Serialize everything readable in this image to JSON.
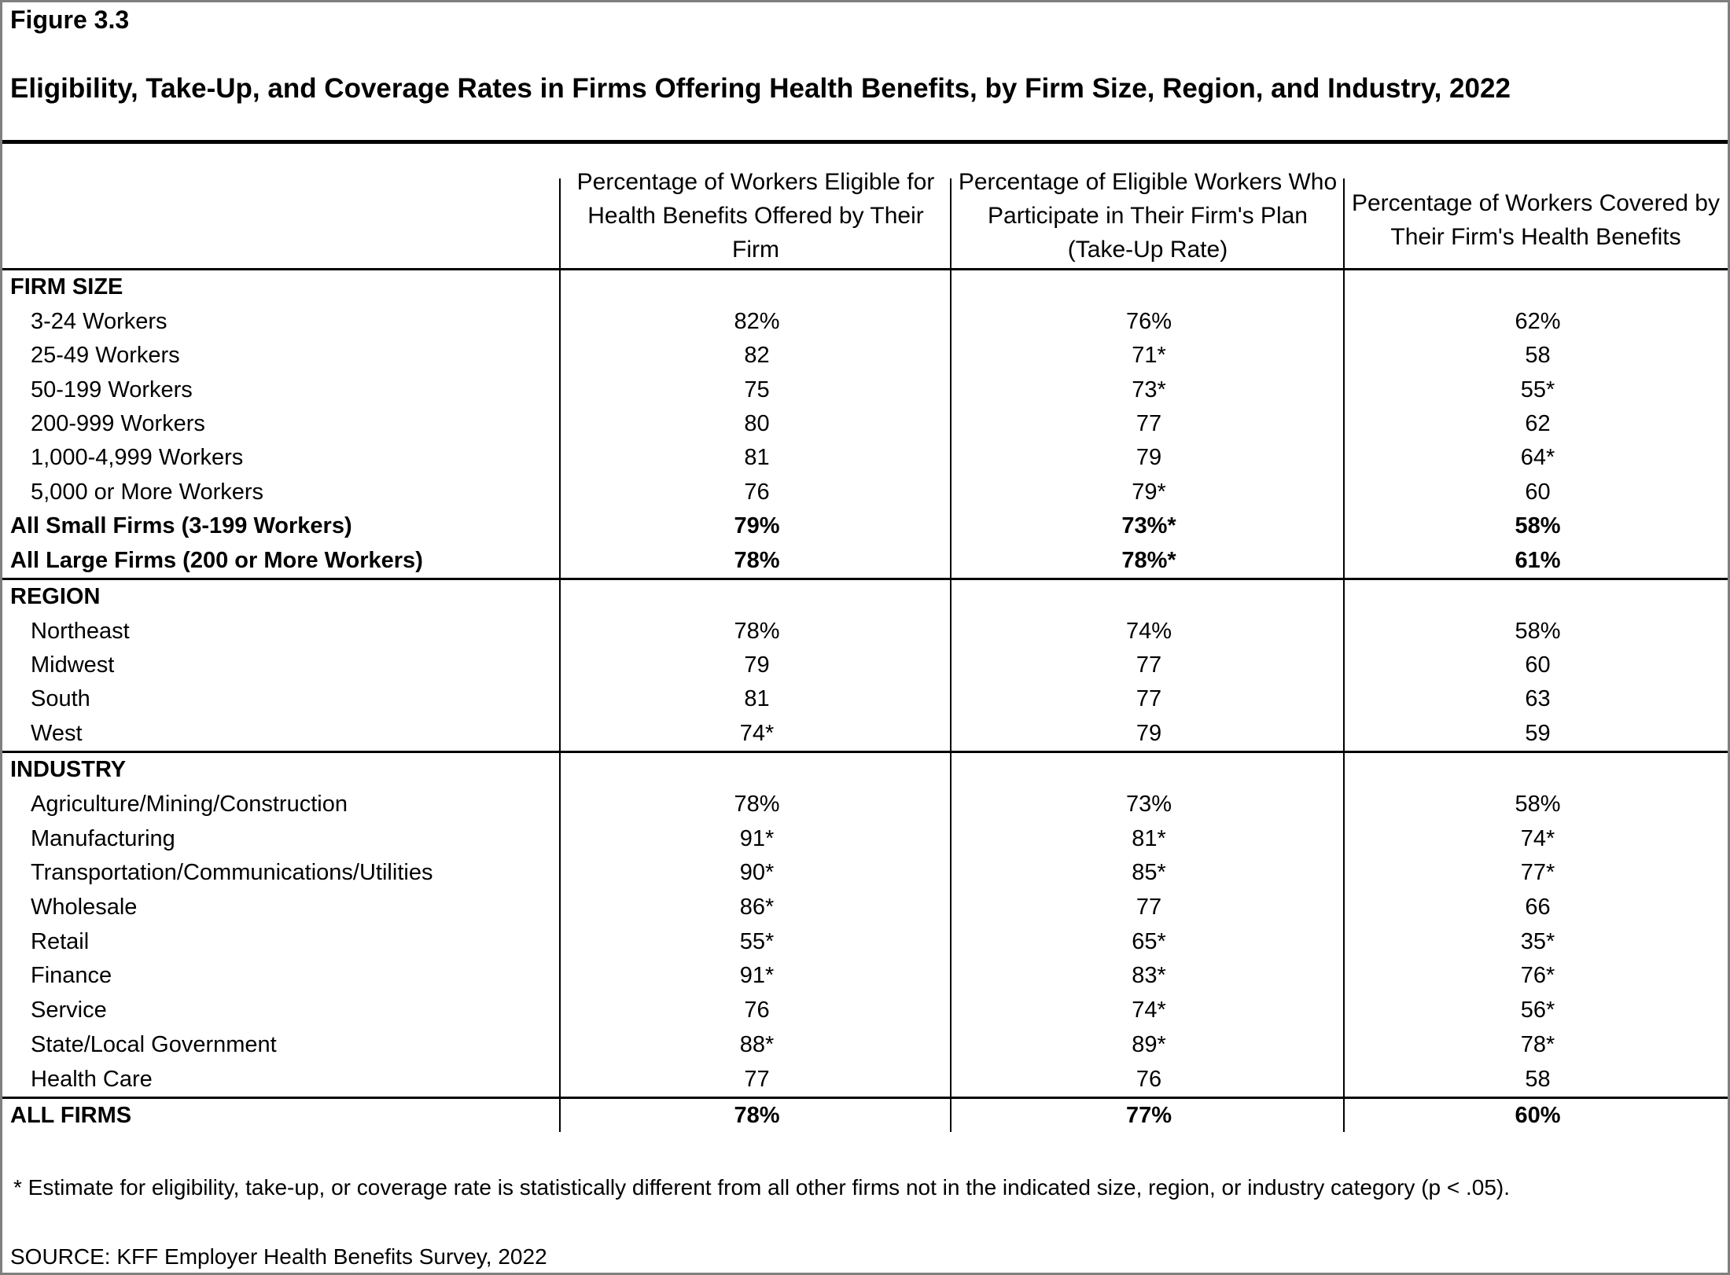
{
  "header": {
    "figure_label": "Figure 3.3",
    "title": "Eligibility, Take-Up, and Coverage Rates in Firms Offering Health Benefits, by Firm Size, Region, and Industry, 2022"
  },
  "columns": [
    "Percentage of Workers Eligible for Health Benefits Offered by Their Firm",
    "Percentage of Eligible Workers Who Participate in Their Firm's Plan (Take-Up Rate)",
    "Percentage of Workers Covered by Their Firm's Health Benefits"
  ],
  "sections": [
    {
      "heading": "FIRM SIZE",
      "rows": [
        {
          "label": "3-24 Workers",
          "indent": true,
          "bold": false,
          "values": [
            "82%",
            "76%",
            "62%"
          ]
        },
        {
          "label": "25-49 Workers",
          "indent": true,
          "bold": false,
          "values": [
            "82",
            "71*",
            "58"
          ]
        },
        {
          "label": "50-199 Workers",
          "indent": true,
          "bold": false,
          "values": [
            "75",
            "73*",
            "55*"
          ]
        },
        {
          "label": "200-999 Workers",
          "indent": true,
          "bold": false,
          "values": [
            "80",
            "77",
            "62"
          ]
        },
        {
          "label": "1,000-4,999 Workers",
          "indent": true,
          "bold": false,
          "values": [
            "81",
            "79",
            "64*"
          ]
        },
        {
          "label": "5,000 or More Workers",
          "indent": true,
          "bold": false,
          "values": [
            "76",
            "79*",
            "60"
          ]
        },
        {
          "label": "All Small Firms (3-199 Workers)",
          "indent": false,
          "bold": true,
          "values": [
            "79%",
            "73%*",
            "58%"
          ]
        },
        {
          "label": "All Large Firms (200 or More Workers)",
          "indent": false,
          "bold": true,
          "values": [
            "78%",
            "78%*",
            "61%"
          ]
        }
      ]
    },
    {
      "heading": "REGION",
      "rows": [
        {
          "label": "Northeast",
          "indent": true,
          "bold": false,
          "values": [
            "78%",
            "74%",
            "58%"
          ]
        },
        {
          "label": "Midwest",
          "indent": true,
          "bold": false,
          "values": [
            "79",
            "77",
            "60"
          ]
        },
        {
          "label": "South",
          "indent": true,
          "bold": false,
          "values": [
            "81",
            "77",
            "63"
          ]
        },
        {
          "label": "West",
          "indent": true,
          "bold": false,
          "values": [
            "74*",
            "79",
            "59"
          ]
        }
      ]
    },
    {
      "heading": "INDUSTRY",
      "rows": [
        {
          "label": "Agriculture/Mining/Construction",
          "indent": true,
          "bold": false,
          "values": [
            "78%",
            "73%",
            "58%"
          ]
        },
        {
          "label": "Manufacturing",
          "indent": true,
          "bold": false,
          "values": [
            "91*",
            "81*",
            "74*"
          ]
        },
        {
          "label": "Transportation/Communications/Utilities",
          "indent": true,
          "bold": false,
          "values": [
            "90*",
            "85*",
            "77*"
          ]
        },
        {
          "label": "Wholesale",
          "indent": true,
          "bold": false,
          "values": [
            "86*",
            "77",
            "66"
          ]
        },
        {
          "label": "Retail",
          "indent": true,
          "bold": false,
          "values": [
            "55*",
            "65*",
            "35*"
          ]
        },
        {
          "label": "Finance",
          "indent": true,
          "bold": false,
          "values": [
            "91*",
            "83*",
            "76*"
          ]
        },
        {
          "label": "Service",
          "indent": true,
          "bold": false,
          "values": [
            "76",
            "74*",
            "56*"
          ]
        },
        {
          "label": "State/Local Government",
          "indent": true,
          "bold": false,
          "values": [
            "88*",
            "89*",
            "78*"
          ]
        },
        {
          "label": "Health Care",
          "indent": true,
          "bold": false,
          "values": [
            "77",
            "76",
            "58"
          ]
        }
      ]
    }
  ],
  "total_row": {
    "label": "ALL FIRMS",
    "values": [
      "78%",
      "77%",
      "60%"
    ]
  },
  "footnote": "* Estimate for eligibility, take-up, or coverage rate is statistically different from all other firms not in the indicated size, region, or industry category (p < .05).",
  "source": "SOURCE: KFF Employer Health Benefits Survey, 2022",
  "colors": {
    "text": "#000000",
    "rules": "#000000",
    "frame_border": "#7f7f7f",
    "background": "#ffffff"
  }
}
